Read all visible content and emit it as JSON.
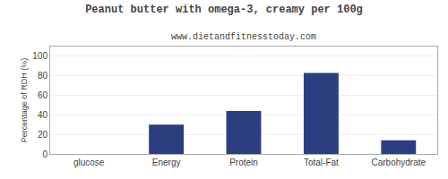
{
  "chart_data": {
    "type": "bar",
    "title": "Peanut butter with omega-3, creamy per 100g",
    "subtitle": "www.dietandfitnesstoday.com",
    "categories": [
      "glucose",
      "Energy",
      "Protein",
      "Total-Fat",
      "Carbohydrate"
    ],
    "values": [
      0,
      30,
      44,
      83,
      14
    ],
    "color": "#2b3f80",
    "ylabel": "Percentage of RDH (%)",
    "ylim": [
      0,
      110
    ],
    "yticks": [
      0,
      20,
      40,
      60,
      80,
      100
    ],
    "grid": true
  }
}
